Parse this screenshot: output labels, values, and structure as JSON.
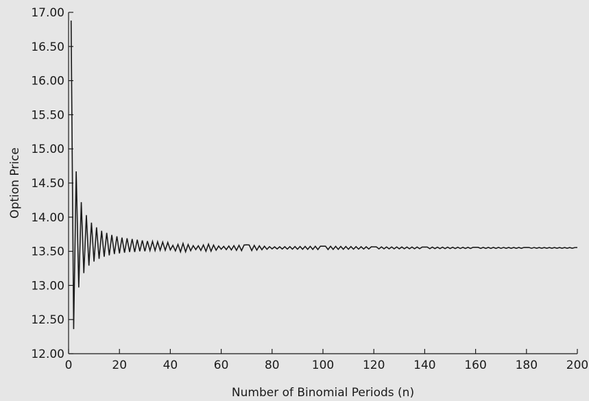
{
  "chart_data": {
    "type": "line",
    "xlabel": "Number of Binomial Periods (n)",
    "ylabel": "Option Price",
    "xlim": [
      0,
      200
    ],
    "ylim": [
      12.0,
      17.0
    ],
    "x_ticks": [
      "0",
      "20",
      "40",
      "60",
      "80",
      "100",
      "120",
      "140",
      "160",
      "180",
      "200"
    ],
    "y_ticks": [
      "12.00",
      "12.50",
      "13.00",
      "13.50",
      "14.00",
      "14.50",
      "15.00",
      "15.50",
      "16.00",
      "16.50",
      "17.00"
    ],
    "grid": false,
    "legend": "none",
    "line_color": "#1a1a1a",
    "background": "#e6e6e6",
    "converged_value": 13.55,
    "series": [
      {
        "x": [
          1,
          2,
          3,
          4,
          5,
          6,
          7,
          8,
          9,
          10,
          11,
          12,
          13,
          14,
          15,
          16,
          17,
          18,
          19,
          20,
          21,
          22,
          23,
          24,
          25,
          26,
          27,
          28,
          29,
          30,
          31,
          32,
          33,
          34,
          35,
          36,
          37,
          38,
          39,
          40,
          45,
          50,
          55,
          60,
          70,
          80,
          100,
          120,
          140,
          160,
          180,
          200
        ],
        "y": [
          16.88,
          12.36,
          14.67,
          12.97,
          14.22,
          13.18,
          14.03,
          13.29,
          13.92,
          13.35,
          13.85,
          13.39,
          13.8,
          13.42,
          13.77,
          13.44,
          13.74,
          13.46,
          13.72,
          13.47,
          13.7,
          13.48,
          13.69,
          13.49,
          13.68,
          13.49,
          13.67,
          13.5,
          13.66,
          13.5,
          13.65,
          13.51,
          13.645,
          13.51,
          13.64,
          13.515,
          13.635,
          13.515,
          13.63,
          13.52,
          13.615,
          13.525,
          13.605,
          13.53,
          13.595,
          13.535,
          13.575,
          13.565,
          13.562,
          13.558,
          13.556,
          13.555
        ]
      }
    ]
  }
}
